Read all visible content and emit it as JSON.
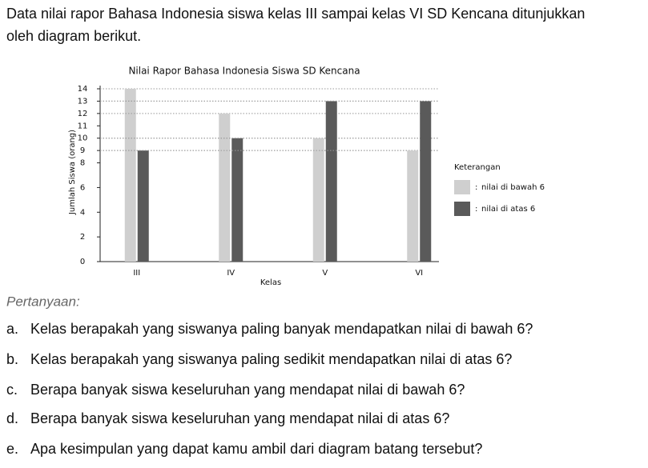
{
  "intro": [
    "Data nilai rapor Bahasa Indonesia siswa kelas III sampai kelas VI SD Kencana ditunjukkan",
    "oleh diagram berikut."
  ],
  "chart_data": {
    "type": "bar",
    "title": "Nilai Rapor Bahasa Indonesia Siswa SD Kencana",
    "x_label": "Kelas",
    "y_label": "Jumlah Siswa (orang)",
    "categories": [
      "III",
      "IV",
      "V",
      "VI"
    ],
    "series": [
      {
        "name": "nilai di bawah 6",
        "color": "#cfcfcf",
        "values": [
          14,
          12,
          10,
          9
        ]
      },
      {
        "name": "nilai di atas 6",
        "color": "#5a5a5a",
        "values": [
          9,
          10,
          13,
          13
        ]
      }
    ],
    "ylim": [
      0,
      14
    ],
    "yticks": [
      0,
      2,
      4,
      6,
      8,
      9,
      10,
      11,
      12,
      13,
      14
    ],
    "legend_title": "Keterangan",
    "legend_separator": ":",
    "legend_position": "right"
  },
  "questions_label": "Pertanyaan:",
  "questions": [
    {
      "letter": "a.",
      "text": "Kelas berapakah yang siswanya paling banyak mendapatkan nilai di bawah 6?"
    },
    {
      "letter": "b.",
      "text": "Kelas berapakah yang siswanya paling sedikit mendapatkan nilai di atas 6?"
    },
    {
      "letter": "c.",
      "text": "Berapa banyak siswa keseluruhan yang mendapat nilai di bawah 6?"
    },
    {
      "letter": "d.",
      "text": "Berapa banyak siswa keseluruhan yang mendapat nilai di atas 6?"
    },
    {
      "letter": "e.",
      "text": "Apa kesimpulan yang dapat kamu ambil dari diagram batang tersebut?"
    }
  ]
}
